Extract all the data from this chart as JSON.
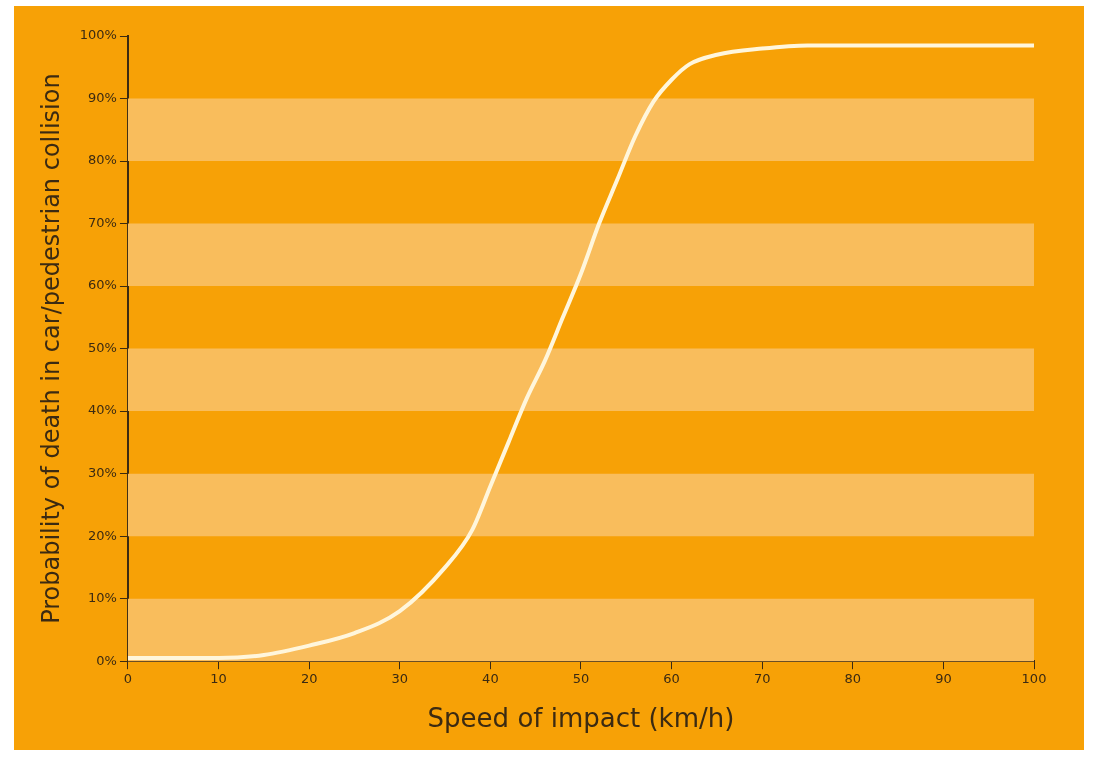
{
  "chart_data": {
    "type": "line",
    "xlabel": "Speed of impact (km/h)",
    "ylabel": "Probability of death in car/pedestrian collision",
    "x": [
      0,
      10,
      15,
      20,
      25,
      30,
      35,
      38,
      40,
      42,
      44,
      46,
      48,
      50,
      52,
      54,
      56,
      58,
      60,
      62,
      65,
      70,
      75,
      80,
      100
    ],
    "series": [
      {
        "color": "#fff6dc",
        "values": [
          0.5,
          0.5,
          1,
          2.5,
          4.5,
          8,
          15,
          21,
          28,
          35,
          42,
          48,
          55,
          62,
          70,
          77,
          84,
          89.5,
          93,
          95.5,
          97,
          98,
          98.5,
          98.5,
          98.5
        ]
      }
    ],
    "xlim": [
      0,
      100
    ],
    "xticks": [
      0,
      10,
      20,
      30,
      40,
      50,
      60,
      70,
      80,
      90,
      100
    ],
    "ylim": [
      0,
      100
    ],
    "yticks": [
      {
        "value": 0,
        "label": "0%"
      },
      {
        "value": 10,
        "label": "10%"
      },
      {
        "value": 20,
        "label": "20%"
      },
      {
        "value": 30,
        "label": "30%"
      },
      {
        "value": 40,
        "label": "40%"
      },
      {
        "value": 50,
        "label": "50%"
      },
      {
        "value": 60,
        "label": "60%"
      },
      {
        "value": 70,
        "label": "70%"
      },
      {
        "value": 80,
        "label": "80%"
      },
      {
        "value": 90,
        "label": "90%"
      },
      {
        "value": 100,
        "label": "100%"
      }
    ],
    "bands": [
      {
        "axis": "y",
        "from": 0,
        "to": 10,
        "color": "#f9bd5c"
      },
      {
        "axis": "y",
        "from": 20,
        "to": 30,
        "color": "#f9bd5c"
      },
      {
        "axis": "y",
        "from": 40,
        "to": 50,
        "color": "#f9bd5c"
      },
      {
        "axis": "y",
        "from": 60,
        "to": 70,
        "color": "#f9bd5c"
      },
      {
        "axis": "y",
        "from": 80,
        "to": 90,
        "color": "#f9bd5c"
      }
    ],
    "grid": false,
    "legend": false,
    "marker": "none",
    "line_style": "solid"
  }
}
